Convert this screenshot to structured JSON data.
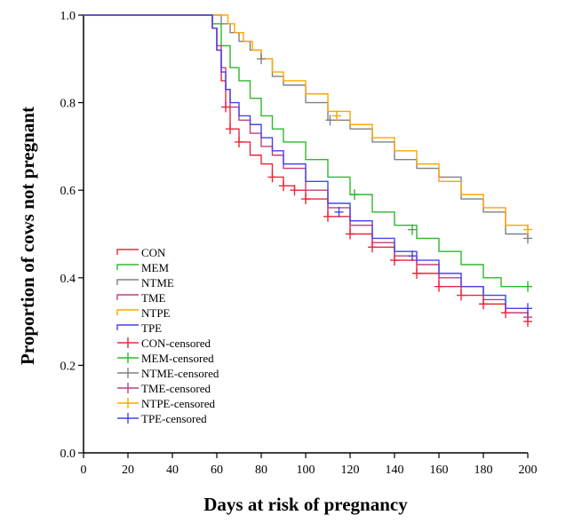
{
  "chart_data": {
    "type": "line",
    "subtype": "kaplan-meier step curves",
    "title": "",
    "xlabel": "Days at risk of pregnancy",
    "ylabel": "Proportion of cows not pregnant",
    "xlim": [
      0,
      200
    ],
    "ylim": [
      0.0,
      1.0
    ],
    "x_ticks": [
      0,
      20,
      40,
      60,
      80,
      100,
      120,
      140,
      160,
      180,
      200
    ],
    "x_tick_labels": [
      "0",
      "20",
      "40",
      "60",
      "80",
      "100",
      "120",
      "140",
      "160",
      "180",
      "200"
    ],
    "y_ticks": [
      0.0,
      0.2,
      0.4,
      0.6,
      0.8,
      1.0
    ],
    "y_tick_labels": [
      "0.0",
      "0.2",
      "0.4",
      "0.6",
      "0.8",
      "1.0"
    ],
    "grid": false,
    "legend_position": "lower-left",
    "legend": [
      "CON",
      "MEM",
      "NTME",
      "TME",
      "NTPE",
      "TPE",
      "CON-censored",
      "MEM-censored",
      "NTME-censored",
      "TME-censored",
      "NTPE-censored",
      "TPE-censored"
    ],
    "series": [
      {
        "name": "CON",
        "color": "#e8283c",
        "x": [
          0,
          58,
          60,
          62,
          64,
          66,
          70,
          75,
          80,
          85,
          90,
          95,
          100,
          110,
          120,
          130,
          140,
          150,
          160,
          170,
          180,
          190,
          200
        ],
        "y": [
          1.0,
          0.97,
          0.92,
          0.85,
          0.79,
          0.74,
          0.71,
          0.68,
          0.66,
          0.63,
          0.61,
          0.6,
          0.58,
          0.54,
          0.5,
          0.47,
          0.44,
          0.41,
          0.38,
          0.36,
          0.34,
          0.32,
          0.3
        ],
        "censored_x": [
          64,
          66,
          70,
          85,
          90,
          95,
          100,
          110,
          120,
          130,
          140,
          150,
          160,
          170,
          180,
          190,
          200
        ],
        "censored_y": [
          0.79,
          0.74,
          0.71,
          0.63,
          0.61,
          0.6,
          0.58,
          0.54,
          0.5,
          0.47,
          0.44,
          0.41,
          0.38,
          0.36,
          0.34,
          0.32,
          0.3
        ]
      },
      {
        "name": "MEM",
        "color": "#2eb82e",
        "x": [
          0,
          58,
          62,
          66,
          70,
          75,
          80,
          85,
          90,
          100,
          110,
          120,
          130,
          140,
          150,
          160,
          170,
          180,
          188,
          200
        ],
        "y": [
          1.0,
          0.98,
          0.93,
          0.88,
          0.85,
          0.81,
          0.77,
          0.74,
          0.71,
          0.67,
          0.63,
          0.59,
          0.55,
          0.52,
          0.49,
          0.46,
          0.43,
          0.4,
          0.38,
          0.38
        ],
        "censored_x": [
          122,
          148,
          200
        ],
        "censored_y": [
          0.59,
          0.51,
          0.38
        ]
      },
      {
        "name": "NTME",
        "color": "#808080",
        "x": [
          0,
          58,
          62,
          66,
          70,
          75,
          80,
          85,
          90,
          100,
          110,
          120,
          130,
          140,
          150,
          160,
          170,
          180,
          190,
          200
        ],
        "y": [
          1.0,
          1.0,
          0.98,
          0.96,
          0.94,
          0.92,
          0.9,
          0.86,
          0.84,
          0.8,
          0.76,
          0.74,
          0.71,
          0.67,
          0.65,
          0.63,
          0.58,
          0.55,
          0.5,
          0.49
        ],
        "censored_x": [
          80,
          111,
          200
        ],
        "censored_y": [
          0.9,
          0.76,
          0.49
        ]
      },
      {
        "name": "TME",
        "color": "#c0407a",
        "x": [
          0,
          58,
          60,
          62,
          64,
          66,
          70,
          75,
          80,
          85,
          90,
          100,
          110,
          120,
          130,
          140,
          150,
          160,
          170,
          180,
          190,
          200
        ],
        "y": [
          1.0,
          0.97,
          0.93,
          0.88,
          0.83,
          0.79,
          0.76,
          0.73,
          0.7,
          0.68,
          0.65,
          0.6,
          0.56,
          0.52,
          0.48,
          0.45,
          0.43,
          0.4,
          0.38,
          0.35,
          0.32,
          0.31
        ],
        "censored_x": [
          200
        ],
        "censored_y": [
          0.31
        ]
      },
      {
        "name": "NTPE",
        "color": "#ffa500",
        "x": [
          0,
          65,
          68,
          72,
          76,
          80,
          85,
          90,
          100,
          110,
          120,
          130,
          140,
          150,
          160,
          170,
          180,
          190,
          200
        ],
        "y": [
          1.0,
          0.98,
          0.96,
          0.94,
          0.92,
          0.9,
          0.87,
          0.85,
          0.82,
          0.78,
          0.75,
          0.72,
          0.69,
          0.66,
          0.62,
          0.59,
          0.56,
          0.52,
          0.51
        ],
        "censored_x": [
          114,
          200
        ],
        "censored_y": [
          0.77,
          0.51
        ]
      },
      {
        "name": "TPE",
        "color": "#4444ee",
        "x": [
          0,
          58,
          60,
          62,
          64,
          66,
          70,
          75,
          80,
          85,
          90,
          100,
          110,
          120,
          130,
          140,
          150,
          160,
          170,
          180,
          190,
          200
        ],
        "y": [
          1.0,
          0.97,
          0.92,
          0.87,
          0.83,
          0.8,
          0.77,
          0.75,
          0.72,
          0.69,
          0.66,
          0.62,
          0.57,
          0.53,
          0.49,
          0.46,
          0.44,
          0.41,
          0.38,
          0.36,
          0.33,
          0.33
        ],
        "censored_x": [
          115,
          148,
          200
        ],
        "censored_y": [
          0.55,
          0.45,
          0.33
        ]
      }
    ]
  }
}
